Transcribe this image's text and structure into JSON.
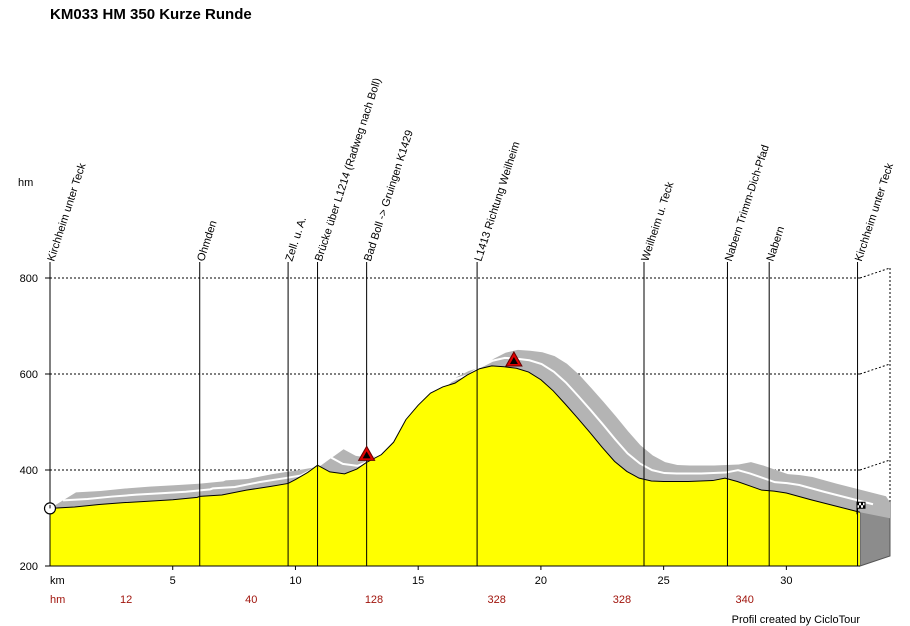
{
  "chart_data": {
    "type": "area",
    "title": "KM033 HM 350 Kurze Runde",
    "ylabel": "hm",
    "xlabel": "km",
    "xlim": [
      0,
      33
    ],
    "ylim": [
      200,
      800
    ],
    "x_ticks": [
      5,
      10,
      15,
      20,
      25,
      30
    ],
    "y_ticks": [
      200,
      400,
      600,
      800
    ],
    "grid": "horizontal dashed",
    "fill_color": "#ffff00",
    "shadow_color": "#b4b4b4",
    "profile": {
      "x": [
        0,
        1,
        2,
        3,
        4,
        5,
        6,
        6.1,
        7,
        8,
        9,
        9.7,
        10,
        10.5,
        10.9,
        11.4,
        12,
        12.5,
        12.9,
        13.5,
        14,
        14.5,
        15,
        15.5,
        16,
        16.5,
        17,
        17.5,
        18,
        18.5,
        19,
        19.5,
        20,
        20.5,
        21,
        21.5,
        22,
        22.5,
        23,
        23.5,
        24,
        24.5,
        25,
        26,
        27,
        27.5,
        28,
        28.5,
        29,
        29.5,
        30,
        31,
        32,
        33
      ],
      "y": [
        320,
        323,
        328,
        332,
        335,
        338,
        343,
        345,
        348,
        358,
        366,
        372,
        380,
        395,
        410,
        396,
        392,
        402,
        416,
        432,
        458,
        505,
        535,
        560,
        573,
        581,
        598,
        611,
        617,
        615,
        612,
        604,
        588,
        565,
        537,
        508,
        478,
        447,
        418,
        397,
        383,
        377,
        376,
        376,
        378,
        383,
        376,
        367,
        358,
        356,
        352,
        338,
        325,
        312
      ]
    },
    "waypoints": [
      {
        "x": 0,
        "label": "Kirchheim unter Teck",
        "hm": ""
      },
      {
        "x": 6.1,
        "label": "Ohmden",
        "hm": "12"
      },
      {
        "x": 9.7,
        "label": "Zell. u. A.",
        "hm": "40"
      },
      {
        "x": 10.9,
        "label": "Brücke über L1214 (Radweg nach Boll)",
        "hm": "128"
      },
      {
        "x": 12.9,
        "label": "Bad Boll -> Gruingen K1429",
        "hm": ""
      },
      {
        "x": 17.4,
        "label": "L1413 Richtung Weilheim",
        "hm": "328"
      },
      {
        "x": 24.2,
        "label": "Weilheim u. Teck",
        "hm": "328"
      },
      {
        "x": 27.6,
        "label": "Nabern Trimm-Dich-Pfad",
        "hm": "340"
      },
      {
        "x": 29.3,
        "label": "Nabern",
        "hm": ""
      },
      {
        "x": 32.9,
        "label": "Kirchheim unter Teck",
        "hm": ""
      }
    ],
    "hm_row": {
      "label": "hm",
      "items": [
        {
          "x": 3.1,
          "value": "12"
        },
        {
          "x": 8.2,
          "value": "40"
        },
        {
          "x": 13.2,
          "value": "128"
        },
        {
          "x": 18.2,
          "value": "328"
        },
        {
          "x": 23.3,
          "value": "328"
        },
        {
          "x": 28.3,
          "value": "340"
        }
      ]
    },
    "climb_markers": [
      12.9,
      18.9
    ]
  },
  "credit": "Profil created by CicloTour"
}
